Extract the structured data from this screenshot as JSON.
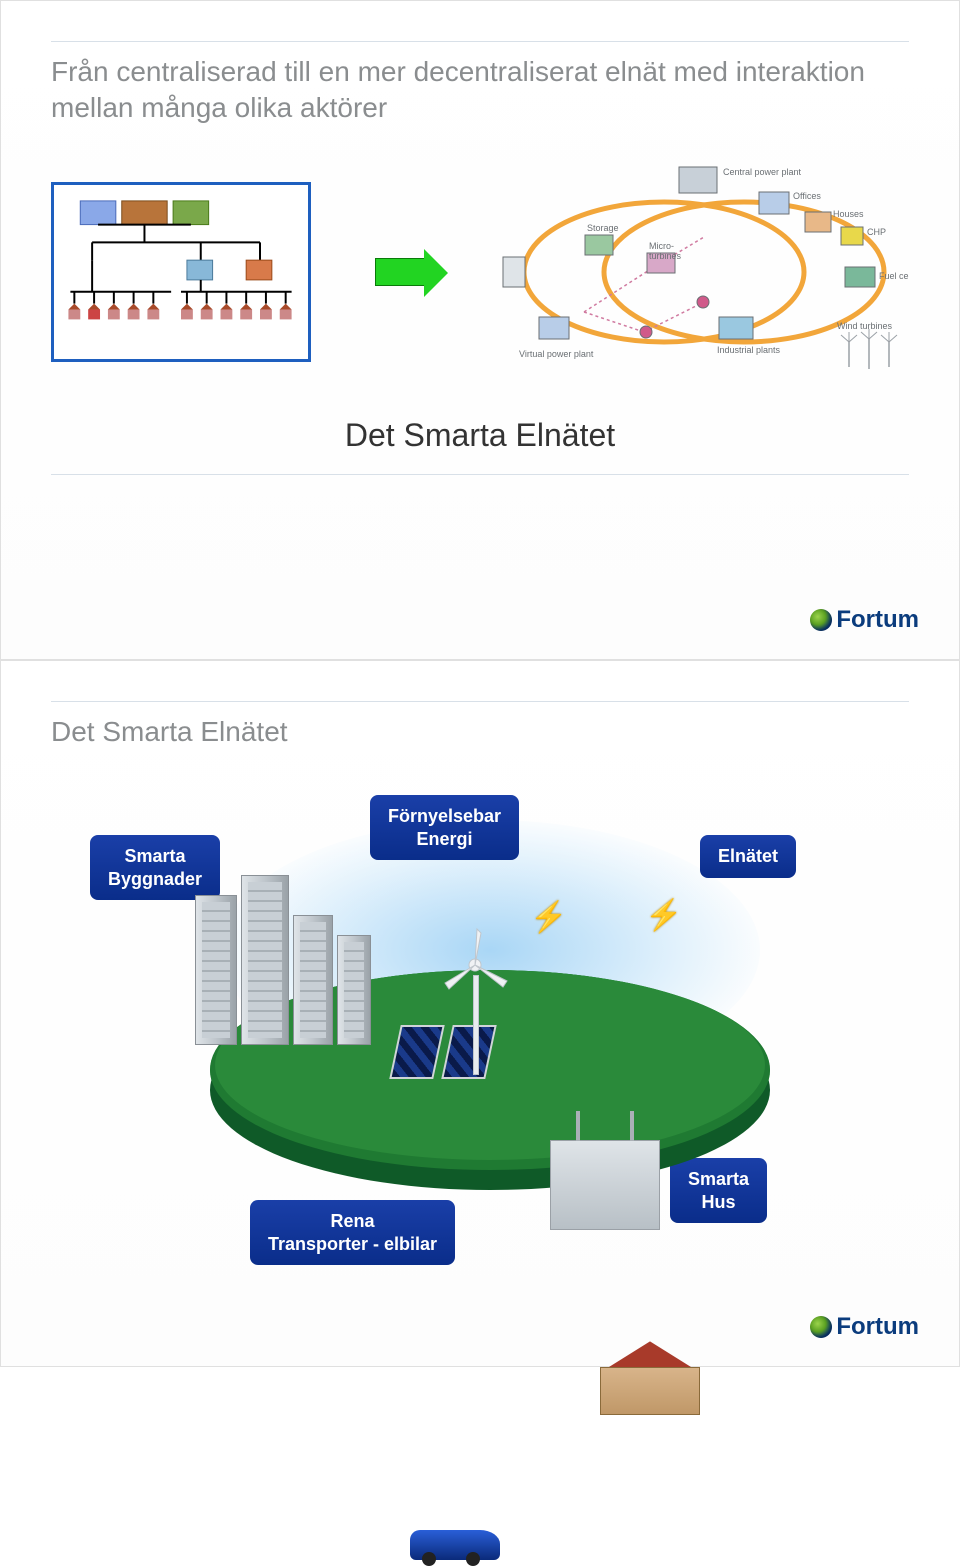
{
  "slide1": {
    "title": "Från centraliserad till en mer decentraliserat elnät med interaktion mellan många olika aktörer",
    "subtitle": "Det Smarta Elnätet",
    "hierarchy": {
      "border_color": "#1e5fbf",
      "levels": 3
    },
    "arrow": {
      "fill": "#22d422",
      "stroke": "#0a7a0a"
    },
    "network": {
      "ring_color": "#f2a63a",
      "node_stroke": "#6a6f73",
      "labels": {
        "central_power_plant": "Central power plant",
        "offices": "Offices",
        "houses": "Houses",
        "chp": "CHP",
        "fuel_cells": "Fuel cells",
        "wind_turbines": "Wind turbines",
        "industrial_plants": "Industrial plants",
        "virtual_power_plant": "Virtual power plant",
        "storage": "Storage",
        "micro_turbines": "Micro-turbines"
      }
    },
    "logo": "Fortum"
  },
  "slide2": {
    "title": "Det Smarta Elnätet",
    "badges": {
      "smarta_byggnader": "Smarta\nByggnader",
      "fornyelsebar_energi": "Förnyelsebar\nEnergi",
      "elnatet": "Elnätet",
      "rena_transporter": "Rena\nTransporter - elbilar",
      "smarta_hus": "Smarta\nHus"
    },
    "badge_style": {
      "bg_gradient_top": "#1a3fa8",
      "bg_gradient_bottom": "#0a2d8a",
      "text_color": "#ffffff",
      "border_radius": 8,
      "font_size": 18,
      "font_weight": "bold"
    },
    "colors": {
      "ground_top": "#2a8a3a",
      "ground_side": "#0f5a28",
      "sky": "#aad4f0",
      "building": "#c8cfd5",
      "car": "#1a4ac0",
      "house_wall": "#d0a878",
      "house_roof": "#a83a2a",
      "solar_panel": "#1a3a8a",
      "windmill": "#e8ecef",
      "substation": "#cdd3d8",
      "bolt": "#f0d020"
    },
    "logo": "Fortum"
  }
}
